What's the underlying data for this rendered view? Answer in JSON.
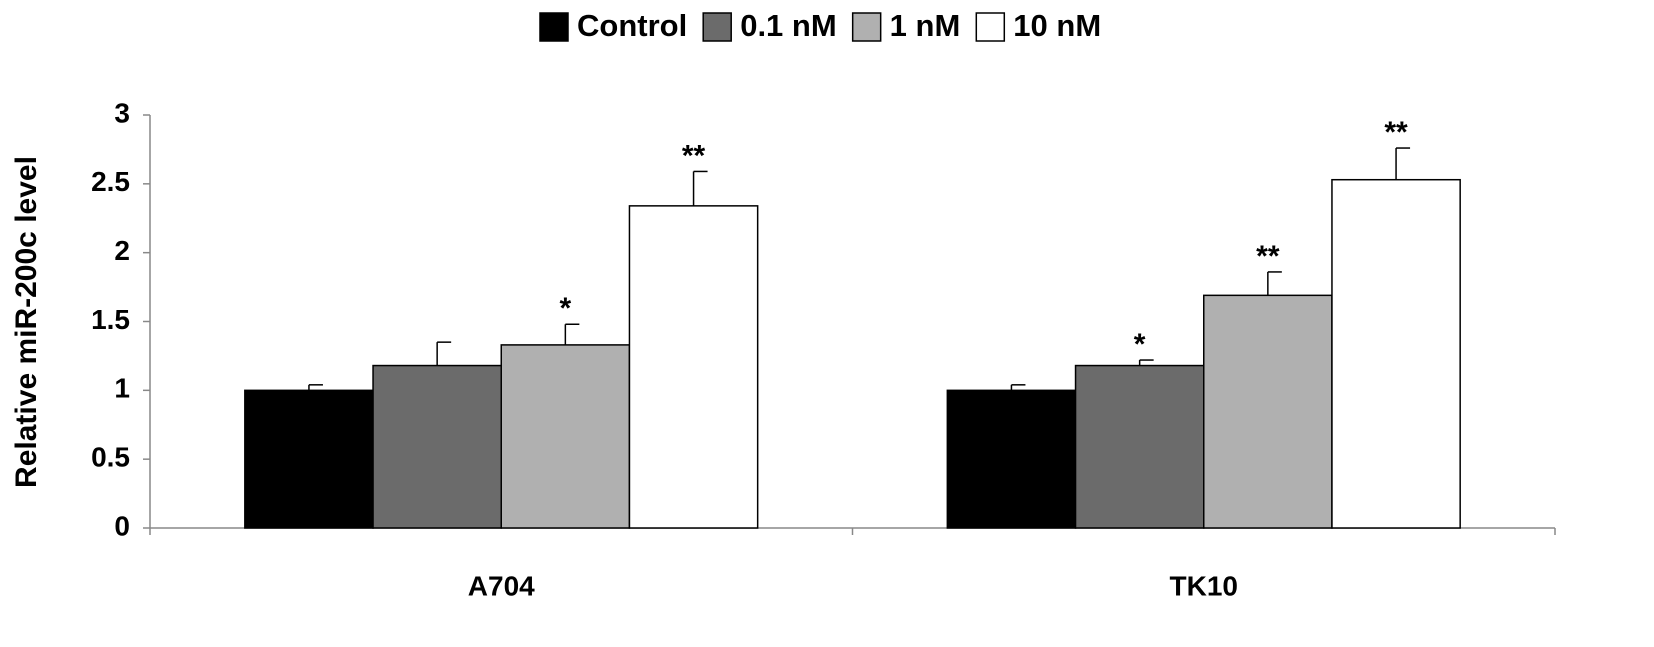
{
  "chart_data": {
    "type": "bar",
    "y_label": "Relative miR-200c level",
    "categories": [
      "A704",
      "TK10"
    ],
    "series": [
      {
        "name": "Control",
        "color": "#000000",
        "values": [
          1.0,
          1.0
        ],
        "errors": [
          0.04,
          0.04
        ],
        "annotations": [
          null,
          null
        ]
      },
      {
        "name": "0.1 nM",
        "color": "#6b6b6b",
        "values": [
          1.18,
          1.18
        ],
        "errors": [
          0.17,
          0.04
        ],
        "annotations": [
          null,
          "*"
        ]
      },
      {
        "name": "1 nM",
        "color": "#b0b0b0",
        "values": [
          1.33,
          1.69
        ],
        "errors": [
          0.15,
          0.17
        ],
        "annotations": [
          "*",
          "**"
        ]
      },
      {
        "name": "10 nM",
        "color": "#ffffff",
        "values": [
          2.34,
          2.53
        ],
        "errors": [
          0.25,
          0.23
        ],
        "annotations": [
          "**",
          "**"
        ]
      }
    ],
    "ylim": [
      0,
      3
    ],
    "yticks": [
      0,
      0.5,
      1,
      1.5,
      2,
      2.5,
      3
    ],
    "legend": "top"
  }
}
